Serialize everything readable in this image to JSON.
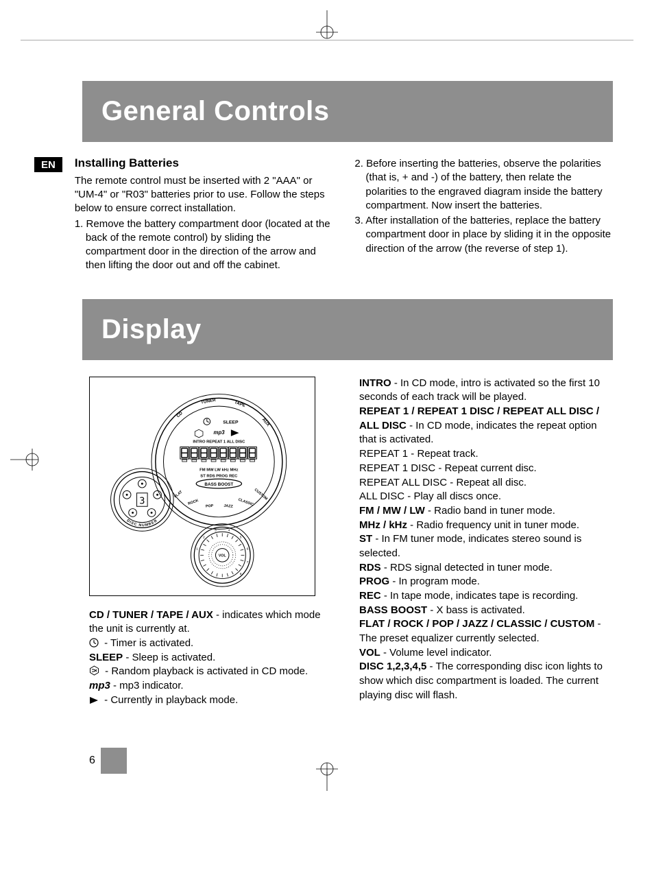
{
  "page": {
    "number": "6",
    "lang_badge": "EN"
  },
  "colors": {
    "header_bg": "#8e8e8e",
    "header_text": "#ffffff",
    "badge_bg": "#000000",
    "badge_text": "#ffffff",
    "body_text": "#000000",
    "page_block": "#8e8e8e"
  },
  "typography": {
    "h1_size_pt": 30,
    "h1_weight": 800,
    "subhead_size_pt": 13,
    "subhead_weight": 700,
    "body_size_pt": 11,
    "body_weight": 400
  },
  "sections": {
    "general_controls": {
      "title": "General Controls",
      "subhead": "Installing Batteries",
      "left_intro": "The remote control must be inserted with 2 \"AAA\" or \"UM-4\" or \"R03\" batteries prior to use.  Follow the steps below to ensure correct installation.",
      "step1": "1. Remove the battery compartment door (located at the back of the remote control) by sliding the compartment door in the direction of the arrow and then lifting the door out and off the cabinet.",
      "step2": "2. Before inserting the batteries, observe the polarities (that is, + and -) of the battery, then relate the polarities to the engraved diagram inside the battery compartment.  Now insert the batteries.",
      "step3": "3. After installation of the batteries, replace the battery compartment door in place by sliding it in the opposite direction of the arrow (the reverse of step 1)."
    },
    "display": {
      "title": "Display",
      "diagram": {
        "type": "infographic",
        "outer_arc_labels": [
          "CD",
          "TUNER",
          "TAPE",
          "AUX"
        ],
        "top_row": [
          "⏱",
          "SLEEP"
        ],
        "second_row": [
          "⟲",
          "mp3",
          "▶"
        ],
        "third_row": "INTRO  REPEAT 1  ALL DISC",
        "digit_segments": 8,
        "band_row": "FM    MW LW   kHz  MHz",
        "status_row": "ST RDS PROG  REC",
        "bass_label": "BASS BOOST",
        "eq_arc_labels": [
          "FLAT",
          "ROCK",
          "POP",
          "JAZZ",
          "CLASSIC",
          "CUSTOM"
        ],
        "disc_number_label": "DISC NUMBER",
        "disc_digit": "3",
        "vol_label": "VOL",
        "colors": {
          "stroke": "#000000",
          "fill": "#ffffff"
        }
      },
      "left_items": [
        {
          "label": "CD / TUNER  / TAPE / AUX",
          "sep": "  - ",
          "text": "indicates which mode the unit is currently at."
        },
        {
          "icon": "clock",
          "sep": "  - ",
          "text": "Timer is activated."
        },
        {
          "label": "SLEEP",
          "sep": " - ",
          "text": "Sleep is activated."
        },
        {
          "icon": "shuffle",
          "sep": " - ",
          "text": "Random playback is activated in CD mode."
        },
        {
          "label_italic": "mp3",
          "sep": " - ",
          "text": "mp3 indicator."
        },
        {
          "icon": "play",
          "sep": "  - ",
          "text": "Currently in playback mode."
        }
      ],
      "right_items": [
        {
          "label": "INTRO",
          "sep": " - ",
          "text": "In CD mode, intro is activated so the first 10 seconds of each track will be played."
        },
        {
          "label": "REPEAT 1 / REPEAT 1 DISC / REPEAT ALL DISC / ALL DISC",
          "sep": " - ",
          "text": "In CD mode, indicates the repeat option that is activated."
        },
        {
          "plain": "REPEAT 1 - Repeat track."
        },
        {
          "plain": "REPEAT 1 DISC - Repeat current disc."
        },
        {
          "plain": "REPEAT ALL DISC - Repeat all disc."
        },
        {
          "plain": "ALL DISC - Play all discs once."
        },
        {
          "label": "FM / MW / LW",
          "sep": " - ",
          "text": "Radio band in tuner mode."
        },
        {
          "label": "MHz / kHz",
          "sep": " - ",
          "text": "Radio frequency unit in tuner mode."
        },
        {
          "label": " ST ",
          "sep": " - ",
          "text": "In FM tuner mode, indicates stereo sound is selected."
        },
        {
          "label": "RDS",
          "sep": "  -  ",
          "text": "RDS signal detected in tuner mode."
        },
        {
          "label": "PROG",
          "sep": " - ",
          "text": "In program mode."
        },
        {
          "label": "REC",
          "sep": " - ",
          "text": "In tape mode, indicates tape is recording."
        },
        {
          "label": "BASS BOOST",
          "sep": " - ",
          "text": "X bass is activated."
        },
        {
          "label": "FLAT / ROCK / POP / JAZZ / CLASSIC / CUSTOM",
          "sep": " - ",
          "text": "The preset equalizer  currently selected."
        },
        {
          "label": "VOL",
          "sep": " - ",
          "text": "Volume level indicator."
        },
        {
          "label": "DISC 1,2,3,4,5",
          "sep": " - ",
          "text": "The corresponding disc icon lights to show which disc compartment is loaded.  The current playing disc will flash."
        }
      ]
    }
  }
}
